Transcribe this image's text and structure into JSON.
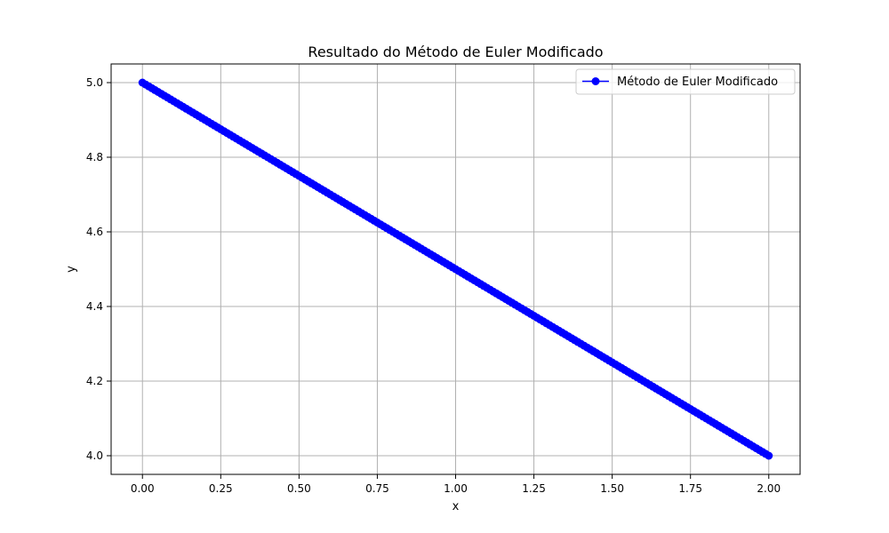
{
  "chart_data": {
    "type": "line",
    "title": "Resultado do Método de Euler Modificado",
    "xlabel": "x",
    "ylabel": "y",
    "xlim": [
      -0.1,
      2.1
    ],
    "ylim": [
      3.95,
      5.05
    ],
    "xticks": [
      0.0,
      0.25,
      0.5,
      0.75,
      1.0,
      1.25,
      1.5,
      1.75,
      2.0
    ],
    "xtick_labels": [
      "0.00",
      "0.25",
      "0.50",
      "0.75",
      "1.00",
      "1.25",
      "1.50",
      "1.75",
      "2.00"
    ],
    "yticks": [
      4.0,
      4.2,
      4.4,
      4.6,
      4.8,
      5.0
    ],
    "ytick_labels": [
      "4.0",
      "4.2",
      "4.4",
      "4.6",
      "4.8",
      "5.0"
    ],
    "grid": true,
    "legend_position": "top-right",
    "series": [
      {
        "name": "Método de Euler Modificado",
        "color": "#0000ff",
        "marker": "circle",
        "x_start": 0.0,
        "x_end": 2.0,
        "x_step": 0.01,
        "y_start": 5.0,
        "y_end": 4.0
      }
    ]
  }
}
